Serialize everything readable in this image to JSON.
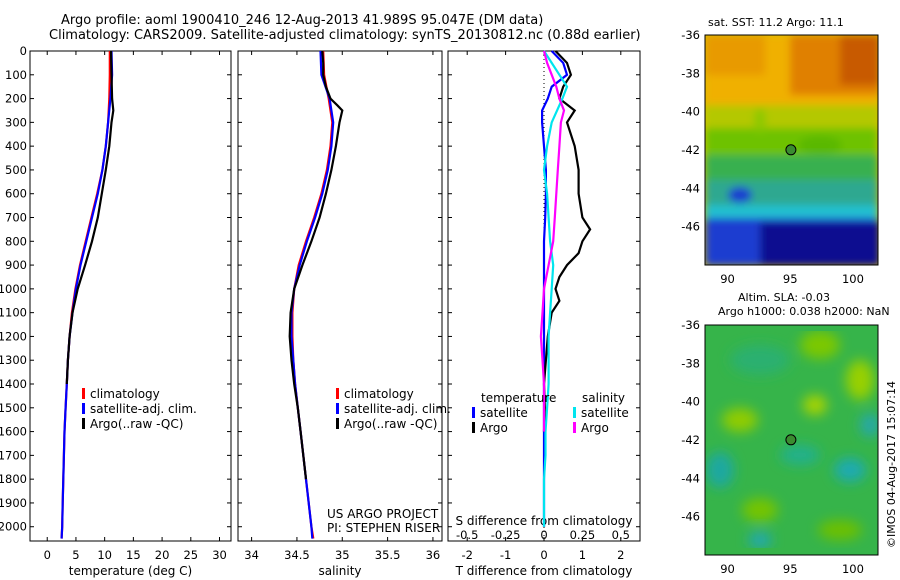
{
  "header": {
    "line1": "Argo profile: aoml 1900410_246 12-Aug-2013 41.989S 95.047E (DM data)",
    "line2": "Climatology: CARS2009. Satellite-adjusted climatology: synTS_20130812.nc (0.88d earlier)"
  },
  "footer_stamp": "©IMOS 04-Aug-2017 15:07:14",
  "project": {
    "line1": "US ARGO PROJECT",
    "line2": "PI: STEPHEN RISER"
  },
  "colors": {
    "climatology": "#ff0000",
    "satellite": "#0000ff",
    "argo": "#000000",
    "sat_salinity": "#00e5ee",
    "argo_salinity": "#ff00ff"
  },
  "chart_data": [
    {
      "type": "line",
      "xlabel": "temperature (deg C)",
      "xlim": [
        -3,
        32
      ],
      "xticks": [
        0,
        5,
        10,
        15,
        20,
        25,
        30
      ],
      "ylim": [
        0,
        2060
      ],
      "yticks": [
        0,
        100,
        200,
        300,
        400,
        500,
        600,
        700,
        800,
        900,
        1000,
        1100,
        1200,
        1300,
        1400,
        1500,
        1600,
        1700,
        1800,
        1900,
        2000
      ],
      "legend": [
        "climatology",
        "satellite-adj. clim.",
        "Argo(..raw -QC)"
      ],
      "series": [
        {
          "name": "climatology",
          "color": "#ff0000",
          "depth": [
            0,
            100,
            200,
            300,
            400,
            500,
            600,
            700,
            800,
            900,
            1000,
            1100,
            1200,
            1300,
            1400,
            1500,
            1600,
            1700,
            1800,
            1900,
            2000,
            2050
          ],
          "values": [
            10.9,
            10.9,
            10.8,
            10.6,
            10.2,
            9.6,
            8.7,
            7.7,
            6.7,
            5.7,
            4.9,
            4.3,
            3.9,
            3.6,
            3.4,
            3.2,
            3.0,
            2.9,
            2.8,
            2.7,
            2.6,
            2.5
          ]
        },
        {
          "name": "satellite-adj. clim.",
          "color": "#0000ff",
          "depth": [
            0,
            100,
            200,
            300,
            400,
            500,
            600,
            700,
            800,
            900,
            1000,
            1100,
            1200,
            1300,
            1400,
            1500,
            1600,
            1700,
            1800,
            1900,
            2000,
            2050
          ],
          "values": [
            11.2,
            11.3,
            11.0,
            10.6,
            10.2,
            9.6,
            8.8,
            7.8,
            6.8,
            5.8,
            5.0,
            4.4,
            3.9,
            3.6,
            3.4,
            3.2,
            3.0,
            2.9,
            2.8,
            2.7,
            2.6,
            2.5
          ]
        },
        {
          "name": "Argo(..raw -QC)",
          "color": "#000000",
          "depth": [
            0,
            100,
            200,
            250,
            300,
            400,
            500,
            600,
            700,
            800,
            900,
            1000,
            1100,
            1200,
            1300,
            1400
          ],
          "values": [
            11.1,
            11.2,
            11.3,
            11.5,
            11.2,
            10.8,
            10.2,
            9.5,
            8.8,
            7.8,
            6.6,
            5.3,
            4.4,
            3.9,
            3.6,
            3.4
          ]
        }
      ]
    },
    {
      "type": "line",
      "xlabel": "salinity",
      "xlim": [
        33.85,
        36.1
      ],
      "xticks": [
        34,
        34.5,
        35,
        35.5,
        36
      ],
      "ylim": [
        0,
        2060
      ],
      "legend": [
        "climatology",
        "satellite-adj. clim.",
        "Argo(..raw -QC)"
      ],
      "series": [
        {
          "name": "climatology",
          "color": "#ff0000",
          "depth": [
            0,
            100,
            200,
            300,
            400,
            500,
            600,
            700,
            800,
            900,
            1000,
            1100,
            1200,
            1300,
            1400,
            1500,
            1600,
            1700,
            1800,
            1900,
            2000,
            2050
          ],
          "values": [
            34.79,
            34.8,
            34.85,
            34.89,
            34.87,
            34.83,
            34.77,
            34.69,
            34.6,
            34.52,
            34.47,
            34.45,
            34.45,
            34.46,
            34.48,
            34.51,
            34.54,
            34.57,
            34.6,
            34.63,
            34.66,
            34.68
          ]
        },
        {
          "name": "satellite-adj. clim.",
          "color": "#0000ff",
          "depth": [
            0,
            100,
            200,
            300,
            400,
            500,
            600,
            700,
            800,
            900,
            1000,
            1100,
            1200,
            1300,
            1400,
            1500,
            1600,
            1700,
            1800,
            1900,
            2000,
            2050
          ],
          "values": [
            34.76,
            34.77,
            34.86,
            34.9,
            34.88,
            34.84,
            34.78,
            34.7,
            34.61,
            34.53,
            34.47,
            34.44,
            34.44,
            34.46,
            34.48,
            34.51,
            34.54,
            34.57,
            34.6,
            34.63,
            34.66,
            34.67
          ]
        },
        {
          "name": "Argo(..raw -QC)",
          "color": "#000000",
          "depth": [
            0,
            50,
            100,
            150,
            200,
            230,
            250,
            300,
            400,
            500,
            600,
            700,
            800,
            900,
            1000,
            1100,
            1200,
            1300,
            1400,
            1500,
            1600,
            1700,
            1800
          ],
          "values": [
            34.78,
            34.79,
            34.79,
            34.82,
            34.87,
            34.95,
            35.0,
            34.97,
            34.93,
            34.88,
            34.82,
            34.75,
            34.66,
            34.56,
            34.47,
            34.43,
            34.42,
            34.44,
            34.47,
            34.51,
            34.54,
            34.57,
            34.6
          ]
        }
      ]
    },
    {
      "type": "line",
      "xlabel": "T difference from climatology",
      "xlabel_top": "S difference from climatology",
      "xlim": [
        -2.5,
        2.5
      ],
      "xticks": [
        -2,
        -1,
        0,
        1,
        2
      ],
      "xticks_top": [
        -0.5,
        -0.25,
        0,
        0.25,
        0.5
      ],
      "ylim": [
        0,
        2060
      ],
      "legend_titles": [
        "temperature",
        "salinity"
      ],
      "legend": [
        "satellite",
        "Argo",
        "satellite",
        "Argo"
      ],
      "series": [
        {
          "name": "satellite",
          "group": "temperature",
          "color": "#0000ff",
          "depth": [
            0,
            50,
            100,
            150,
            200,
            250,
            300,
            400,
            500,
            600,
            700,
            800,
            900,
            1000,
            1100,
            1200,
            1300,
            1400,
            1500,
            1600,
            1700,
            1800,
            1900,
            2000
          ],
          "values": [
            0.2,
            0.5,
            0.6,
            0.2,
            0.1,
            -0.05,
            -0.05,
            0.0,
            0.05,
            0.05,
            0.03,
            0.0,
            0.0,
            0.0,
            0.0,
            0.0,
            0.0,
            0.0,
            0.0,
            0.0,
            0.0,
            0.0,
            0.0,
            0.0
          ]
        },
        {
          "name": "Argo",
          "group": "temperature",
          "color": "#000000",
          "depth": [
            0,
            50,
            100,
            150,
            200,
            250,
            300,
            400,
            500,
            600,
            700,
            750,
            800,
            850,
            900,
            950,
            1000,
            1050,
            1100,
            1200,
            1300,
            1400,
            1500,
            1600
          ],
          "values": [
            0.3,
            0.6,
            0.7,
            0.5,
            0.4,
            0.8,
            0.6,
            0.8,
            0.9,
            0.9,
            1.0,
            1.2,
            1.0,
            0.9,
            0.6,
            0.4,
            0.3,
            0.4,
            0.2,
            0.1,
            0.05,
            0.0,
            0.02,
            0.0
          ]
        },
        {
          "name": "satellite",
          "group": "salinity",
          "color": "#00e5ee",
          "depth": [
            0,
            50,
            100,
            150,
            200,
            300,
            400,
            500,
            600,
            700,
            800,
            900,
            1000,
            1100,
            1200,
            1300,
            1400,
            1500,
            1600,
            1700,
            1800,
            1900,
            2000
          ],
          "values": [
            0.0,
            0.05,
            0.1,
            0.15,
            0.12,
            0.05,
            0.02,
            0.0,
            0.02,
            0.03,
            0.04,
            0.06,
            0.05,
            0.04,
            0.03,
            0.03,
            0.03,
            0.02,
            0.01,
            0.01,
            0.0,
            0.0,
            0.0
          ]
        },
        {
          "name": "Argo",
          "group": "salinity",
          "color": "#ff00ff",
          "depth": [
            0,
            50,
            100,
            150,
            200,
            250,
            300,
            400,
            500,
            600,
            700,
            800,
            900,
            1000,
            1100,
            1200,
            1300,
            1400,
            1500,
            1600
          ],
          "values": [
            0.0,
            0.02,
            0.05,
            0.08,
            0.1,
            0.13,
            0.11,
            0.1,
            0.09,
            0.08,
            0.07,
            0.06,
            0.03,
            0.0,
            -0.01,
            -0.02,
            -0.01,
            0.0,
            0.0,
            0.0
          ]
        }
      ]
    },
    {
      "type": "heatmap",
      "title": "sat. SST: 11.2 Argo: 11.1",
      "xticks": [
        90,
        95,
        100
      ],
      "yticks": [
        -36,
        -38,
        -40,
        -42,
        -44,
        -46
      ],
      "xlim": [
        88.2,
        102
      ],
      "ylim": [
        -48,
        -36
      ],
      "marker": {
        "lon": 95.05,
        "lat": -41.99
      }
    },
    {
      "type": "heatmap",
      "title_line1": "Altim. SLA: -0.03",
      "title_line2": "Argo h1000: 0.038 h2000: NaN",
      "xticks": [
        90,
        95,
        100
      ],
      "yticks": [
        -36,
        -38,
        -40,
        -42,
        -44,
        -46
      ],
      "xlim": [
        88.2,
        102
      ],
      "ylim": [
        -48,
        -36
      ],
      "marker": {
        "lon": 95.05,
        "lat": -41.99
      }
    }
  ]
}
